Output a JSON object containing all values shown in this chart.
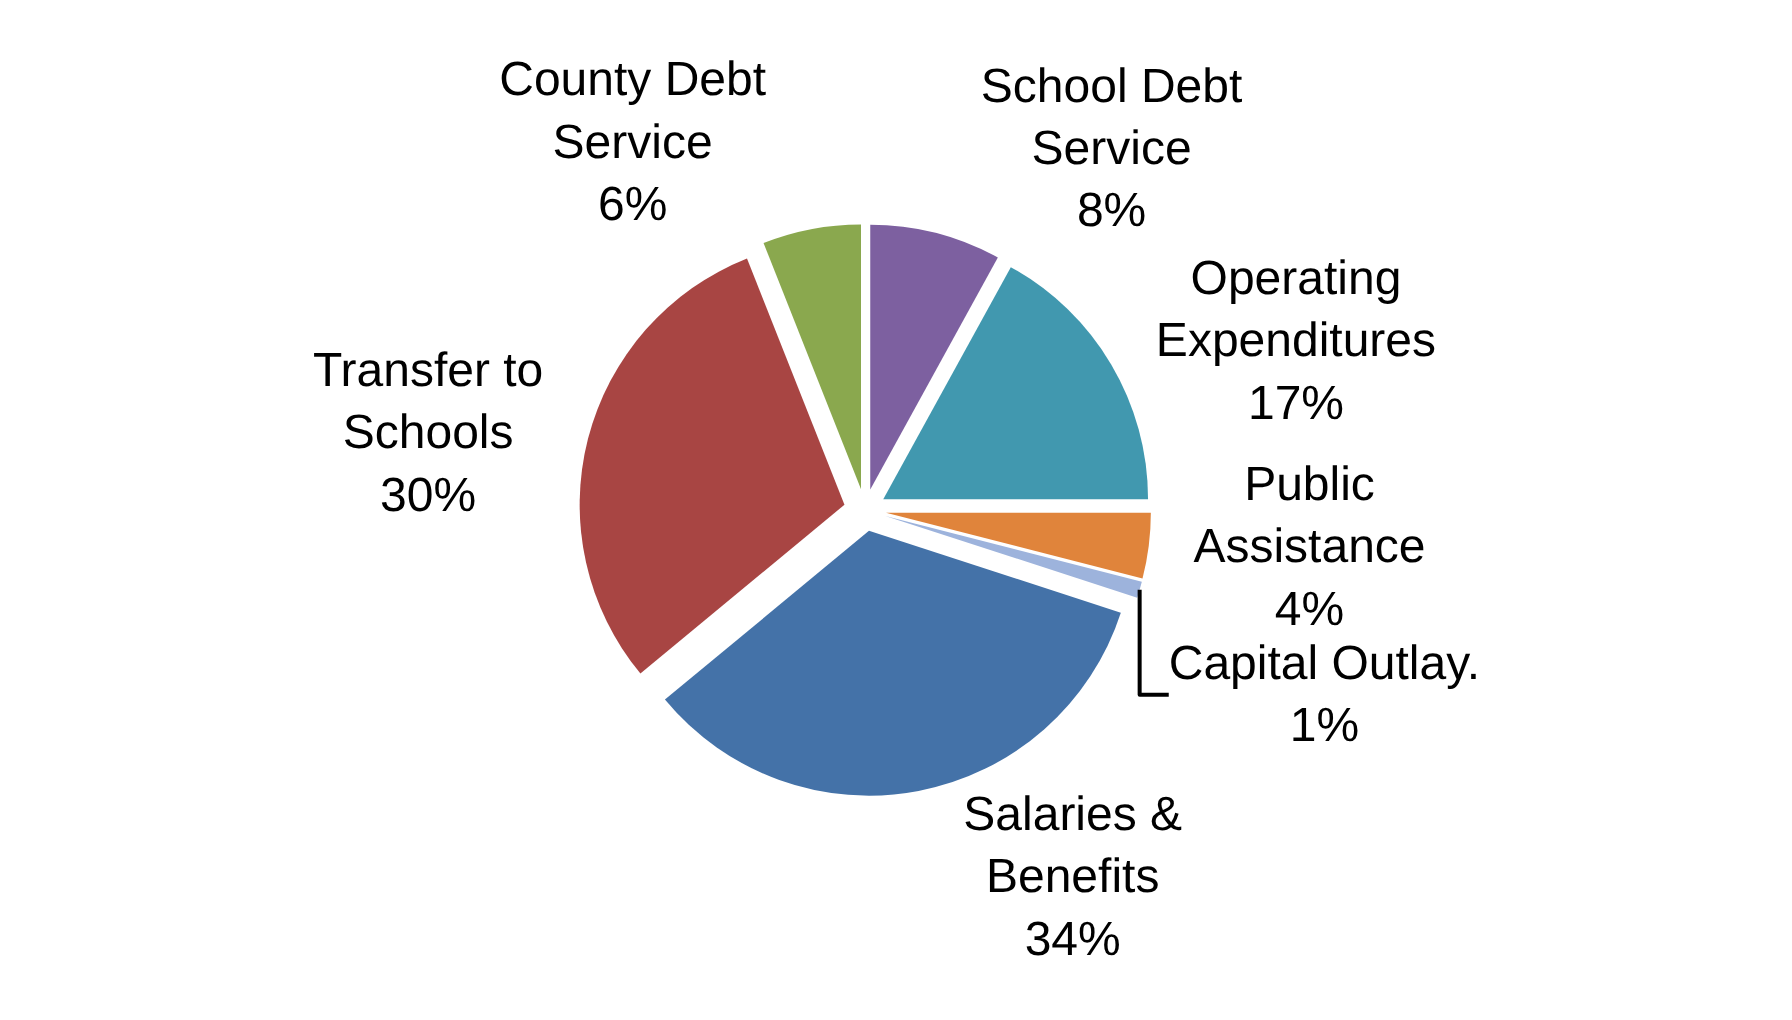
{
  "chart_data": {
    "type": "pie",
    "categories": [
      "School Debt Service",
      "Operating Expenditures",
      "Public Assistance",
      "Capital Outlay.",
      "Salaries & Benefits",
      "Transfer to Schools",
      "County Debt Service"
    ],
    "values": [
      8,
      17,
      4,
      1,
      34,
      30,
      6
    ],
    "colors": [
      "#7d60a0",
      "#4198af",
      "#e0843b",
      "#9db3dc",
      "#4472a8",
      "#a84543",
      "#8aa84e"
    ],
    "value_labels": [
      "8%",
      "17%",
      "4%",
      "1%",
      "34%",
      "30%",
      "6%"
    ],
    "legend": false
  }
}
